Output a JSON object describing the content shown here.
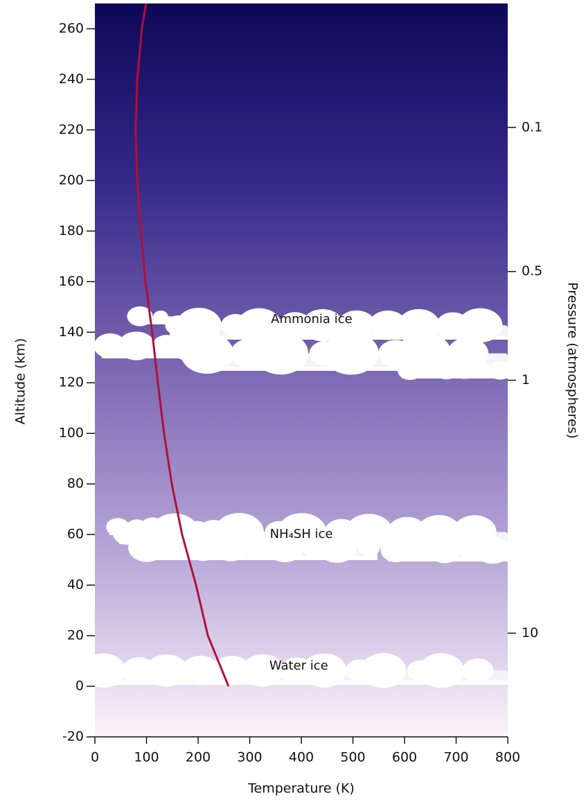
{
  "chart_data": {
    "type": "line",
    "xlabel": "Temperature (K)",
    "ylabel": "Altitude (km)",
    "y2label": "Pressure (atmospheres)",
    "xlim": [
      0,
      800
    ],
    "xticks": [
      0,
      100,
      200,
      300,
      400,
      500,
      600,
      700,
      800
    ],
    "ylim": [
      -20,
      270
    ],
    "yticks": [
      -20,
      0,
      20,
      40,
      60,
      80,
      100,
      120,
      140,
      160,
      180,
      200,
      220,
      240,
      260
    ],
    "pressure_levels": [
      {
        "pressure": 0.1,
        "altitude": 221
      },
      {
        "pressure": 0.5,
        "altitude": 164
      },
      {
        "pressure": 1,
        "altitude": 121
      },
      {
        "pressure": 10,
        "altitude": 21
      }
    ],
    "series": [
      {
        "color": "#b0103a",
        "x": [
          259,
          219,
          196,
          169,
          149,
          134,
          122,
          111,
          98,
          89,
          82,
          79,
          82,
          91,
          99
        ],
        "values": [
          0,
          20,
          40,
          60,
          80,
          100,
          120,
          140,
          160,
          180,
          200,
          220,
          240,
          260,
          270
        ]
      }
    ],
    "annotations": [
      {
        "text": "Ammonia ice",
        "x": 420,
        "y": 145
      },
      {
        "text": "NH₄SH  ice",
        "x": 400,
        "y": 60
      },
      {
        "text": "Water ice",
        "x": 395,
        "y": 8
      }
    ]
  }
}
